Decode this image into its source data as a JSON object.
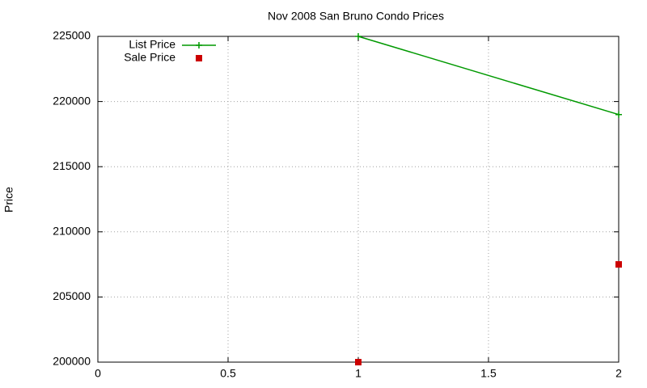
{
  "chart_data": {
    "type": "line",
    "title": "Nov 2008 San Bruno Condo Prices",
    "y_label": "Price",
    "x": [
      1,
      2
    ],
    "series": [
      {
        "name": "List Price",
        "color": "#009900",
        "values": [
          225000,
          219000
        ],
        "line": true,
        "marker": "plus"
      },
      {
        "name": "Sale Price",
        "color": "#cc0000",
        "values": [
          200000,
          207500
        ],
        "line": false,
        "marker": "square"
      }
    ],
    "xlim": [
      0,
      2
    ],
    "xticks": [
      0,
      0.5,
      1,
      1.5,
      2
    ],
    "ylim": [
      200000,
      225000
    ],
    "yticks": [
      200000,
      205000,
      210000,
      215000,
      220000,
      225000
    ],
    "grid": true,
    "legend": "top-left"
  }
}
